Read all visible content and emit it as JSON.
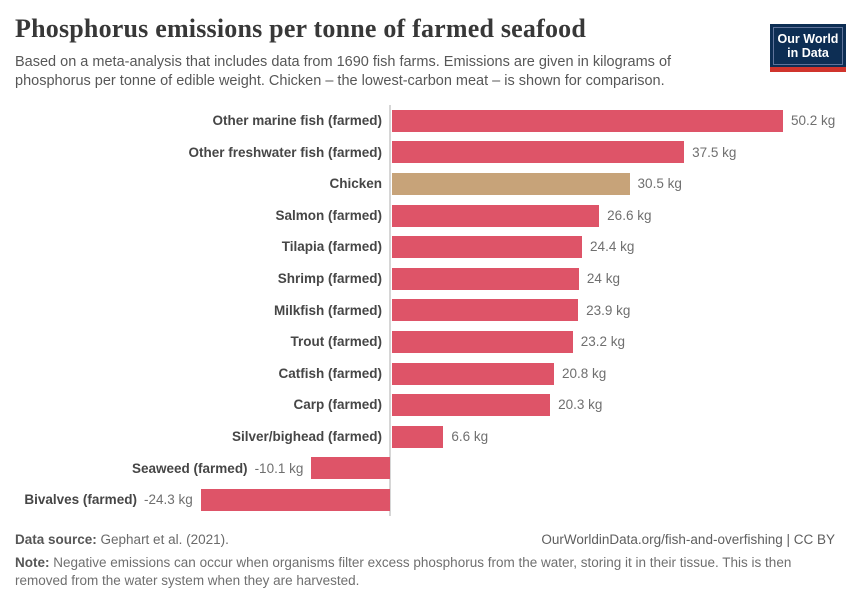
{
  "header": {
    "title": "Phosphorus emissions per tonne of farmed seafood",
    "subtitle": "Based on a meta-analysis that includes data from 1690 fish farms. Emissions are given in kilograms of phosphorus per tonne of edible weight. Chicken – the lowest-carbon meat – is shown for comparison.",
    "logo": {
      "line1": "Our World",
      "line2": "in Data"
    }
  },
  "chart_data": {
    "type": "bar",
    "orientation": "horizontal",
    "title": "Phosphorus emissions per tonne of farmed seafood",
    "unit": "kg",
    "xlim": [
      -24.3,
      50.2
    ],
    "baseline": 0,
    "grid": false,
    "legend": "none",
    "categories": [
      "Other marine fish (farmed)",
      "Other freshwater fish (farmed)",
      "Chicken",
      "Salmon (farmed)",
      "Tilapia (farmed)",
      "Shrimp (farmed)",
      "Milkfish (farmed)",
      "Trout (farmed)",
      "Catfish (farmed)",
      "Carp (farmed)",
      "Silver/bighead (farmed)",
      "Seaweed (farmed)",
      "Bivalves (farmed)"
    ],
    "values": [
      50.2,
      37.5,
      30.5,
      26.6,
      24.4,
      24,
      23.9,
      23.2,
      20.8,
      20.3,
      6.6,
      -10.1,
      -24.3
    ],
    "value_labels": [
      "50.2 kg",
      "37.5 kg",
      "30.5 kg",
      "26.6 kg",
      "24.4 kg",
      "24 kg",
      "23.9 kg",
      "23.2 kg",
      "20.8 kg",
      "20.3 kg",
      "6.6 kg",
      "-10.1 kg",
      "-24.3 kg"
    ],
    "highlight_index": 2,
    "colors": {
      "bar_default": "#de5468",
      "bar_highlight": "#c7a379",
      "axis_line": "#d6d6d6"
    }
  },
  "footer": {
    "data_source_label": "Data source:",
    "data_source_value": " Gephart et al. (2021).",
    "link": "OurWorldinData.org/fish-and-overfishing | CC BY",
    "note_label": "Note:",
    "note_value": " Negative emissions can occur when organisms filter excess phosphorus from the water, storing it in their tissue. This is then removed from the water system when they are harvested."
  }
}
